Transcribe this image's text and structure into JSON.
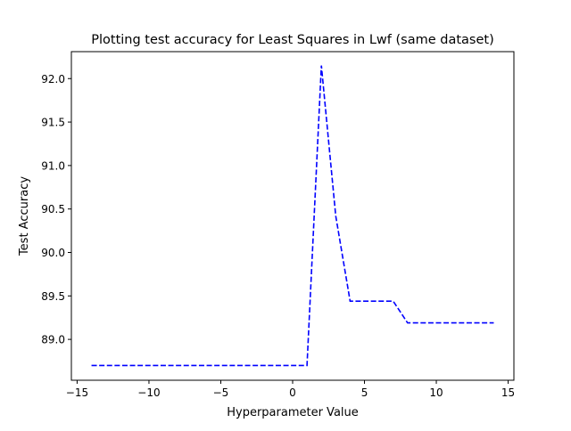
{
  "chart_data": {
    "type": "line",
    "title": "Plotting test accuracy for Least Squares in Lwf (same dataset)",
    "xlabel": "Hyperparameter Value",
    "ylabel": "Test Accuracy",
    "xlim": [
      -15.4,
      15.4
    ],
    "ylim": [
      88.53,
      92.31
    ],
    "xticks": [
      -15,
      -10,
      -5,
      0,
      5,
      10,
      15
    ],
    "xtick_labels": [
      "−15",
      "−10",
      "−5",
      "0",
      "5",
      "10",
      "15"
    ],
    "yticks": [
      89.0,
      89.5,
      90.0,
      90.5,
      91.0,
      91.5,
      92.0
    ],
    "ytick_labels": [
      "89.0",
      "89.5",
      "90.0",
      "90.5",
      "91.0",
      "91.5",
      "92.0"
    ],
    "grid": false,
    "series": [
      {
        "color": "#0000ff",
        "linestyle": "dashed",
        "x": [
          -14,
          -13,
          -12,
          -11,
          -10,
          -9,
          -8,
          -7,
          -6,
          -5,
          -4,
          -3,
          -2,
          -1,
          0,
          1,
          2,
          3,
          4,
          5,
          6,
          7,
          8,
          9,
          10,
          11,
          12,
          13,
          14
        ],
        "y": [
          88.7,
          88.7,
          88.7,
          88.7,
          88.7,
          88.7,
          88.7,
          88.7,
          88.7,
          88.7,
          88.7,
          88.7,
          88.7,
          88.7,
          88.7,
          88.7,
          92.15,
          90.42,
          89.44,
          89.44,
          89.44,
          89.44,
          89.19,
          89.19,
          89.19,
          89.19,
          89.19,
          89.19,
          89.19
        ]
      }
    ]
  }
}
